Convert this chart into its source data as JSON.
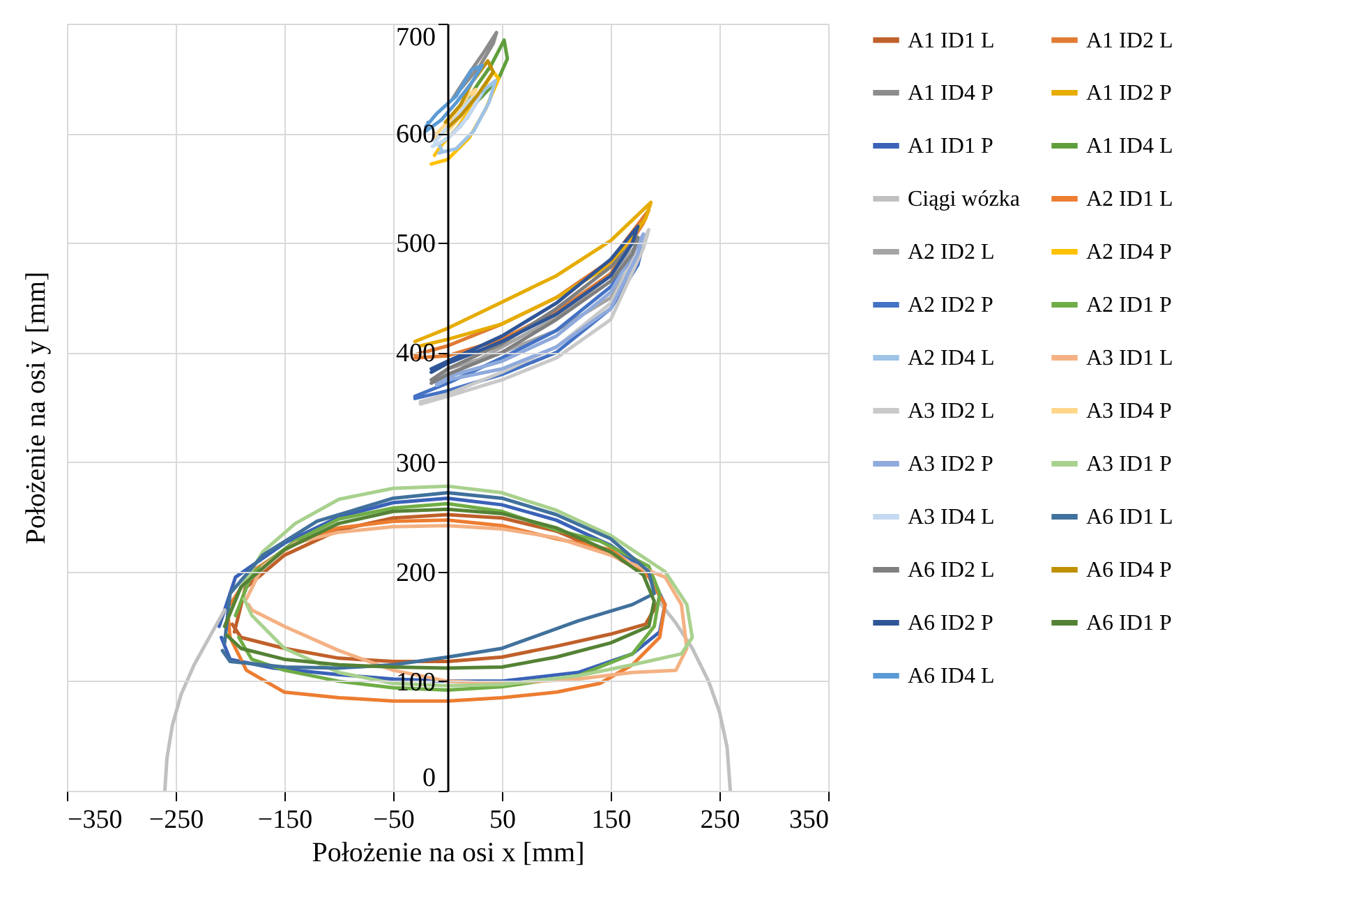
{
  "chart_data": {
    "type": "line",
    "xlabel": "Położenie na osi x [mm]",
    "ylabel": "Położenie na osi y [mm]",
    "xlim": [
      -350,
      350
    ],
    "xticks": [
      -350,
      -250,
      -150,
      -50,
      50,
      150,
      250,
      350
    ],
    "ylim": [
      0,
      700
    ],
    "yticks": [
      0,
      100,
      200,
      300,
      400,
      500,
      600,
      700
    ],
    "grid": true,
    "legend": "right",
    "marker": "none",
    "line_style": "solid",
    "series": [
      {
        "name": "A1 ID1 L",
        "color": "#c0602a",
        "x": [
          -196,
          -186,
          -150,
          -100,
          -50,
          0,
          50,
          100,
          150,
          185,
          196,
          182,
          150,
          100,
          50,
          0,
          -50,
          -100,
          -150,
          -190,
          -198
        ],
        "values": [
          145,
          185,
          215,
          238,
          249,
          252,
          249,
          237,
          216,
          196,
          176,
          152,
          143,
          132,
          122,
          118,
          118,
          121,
          130,
          140,
          152
        ]
      },
      {
        "name": "A1 ID2 L",
        "color": "#e07a32",
        "x": [
          -30,
          0,
          50,
          100,
          150,
          185,
          180,
          150,
          100,
          50,
          0,
          -30
        ],
        "values": [
          398,
          406,
          426,
          450,
          484,
          530,
          518,
          472,
          437,
          412,
          397,
          395
        ]
      },
      {
        "name": "A1 ID4 P",
        "color": "#8c8c8c",
        "x": [
          5,
          18,
          32,
          45,
          42,
          30,
          15,
          8
        ],
        "values": [
          632,
          652,
          672,
          692,
          682,
          662,
          644,
          636
        ]
      },
      {
        "name": "A1 ID2 P",
        "color": "#e6ac00",
        "x": [
          -30,
          0,
          50,
          100,
          150,
          187,
          182,
          150,
          100,
          50,
          0,
          -25
        ],
        "values": [
          410,
          422,
          446,
          470,
          502,
          537,
          522,
          480,
          450,
          426,
          412,
          406
        ]
      },
      {
        "name": "A1 ID1 P",
        "color": "#3a62b8",
        "x": [
          -210,
          -195,
          -150,
          -100,
          -50,
          0,
          50,
          100,
          150,
          185,
          200,
          195,
          170,
          120,
          50,
          0,
          -50,
          -100,
          -160,
          -200,
          -208
        ],
        "values": [
          150,
          195,
          226,
          250,
          263,
          267,
          261,
          247,
          224,
          200,
          170,
          145,
          125,
          108,
          100,
          100,
          102,
          106,
          112,
          120,
          140
        ]
      },
      {
        "name": "A1 ID4 L",
        "color": "#5f9e3c",
        "x": [
          15,
          28,
          40,
          52,
          55,
          47,
          33,
          20,
          12
        ],
        "values": [
          625,
          645,
          662,
          685,
          668,
          650,
          635,
          622,
          620
        ]
      },
      {
        "name": "Ciągi wózka",
        "color": "#c0c0c0",
        "x": [
          -260,
          -258,
          -253,
          -245,
          -233,
          -218,
          -205,
          null,
          195,
          210,
          225,
          240,
          250,
          257,
          260
        ],
        "values": [
          0,
          30,
          60,
          88,
          115,
          142,
          165,
          null,
          172,
          153,
          130,
          100,
          72,
          40,
          0
        ]
      },
      {
        "name": "A2 ID1 L",
        "color": "#ed7d31",
        "x": [
          -200,
          -180,
          -140,
          -100,
          -50,
          0,
          50,
          100,
          150,
          185,
          200,
          195,
          170,
          140,
          100,
          50,
          0,
          -50,
          -100,
          -150,
          -185,
          -200,
          -202
        ],
        "values": [
          170,
          200,
          226,
          240,
          246,
          247,
          242,
          230,
          220,
          195,
          170,
          140,
          115,
          98,
          90,
          85,
          82,
          82,
          85,
          90,
          110,
          140,
          162
        ]
      },
      {
        "name": "A2 ID2 L",
        "color": "#a5a5a5",
        "x": [
          -10,
          0,
          50,
          100,
          150,
          180,
          175,
          150,
          100,
          50,
          0,
          -10
        ],
        "values": [
          372,
          378,
          405,
          432,
          470,
          505,
          490,
          450,
          420,
          400,
          385,
          375
        ]
      },
      {
        "name": "A2 ID4 P",
        "color": "#ffc000",
        "x": [
          -15,
          0,
          20,
          35,
          47,
          42,
          27,
          10,
          -5,
          -12
        ],
        "values": [
          572,
          576,
          596,
          622,
          650,
          656,
          632,
          606,
          590,
          580
        ]
      },
      {
        "name": "A2 ID2 P",
        "color": "#4472c4",
        "x": [
          -30,
          0,
          50,
          100,
          150,
          180,
          175,
          150,
          100,
          50,
          0,
          -30
        ],
        "values": [
          360,
          372,
          395,
          420,
          460,
          500,
          480,
          440,
          400,
          380,
          365,
          358
        ]
      },
      {
        "name": "A2 ID1 P",
        "color": "#70ad47",
        "x": [
          -195,
          -180,
          -140,
          -100,
          -50,
          0,
          50,
          100,
          140,
          185,
          195,
          190,
          170,
          120,
          50,
          0,
          -50,
          -100,
          -150,
          -180,
          -192
        ],
        "values": [
          160,
          198,
          228,
          248,
          258,
          262,
          255,
          238,
          228,
          205,
          180,
          150,
          125,
          105,
          95,
          92,
          94,
          100,
          110,
          120,
          140
        ]
      },
      {
        "name": "A2 ID4 L",
        "color": "#9dc3e6",
        "x": [
          -8,
          8,
          24,
          38,
          44,
          34,
          18,
          3,
          -8,
          -5
        ],
        "values": [
          582,
          586,
          602,
          628,
          648,
          640,
          614,
          598,
          590,
          584
        ]
      },
      {
        "name": "A3 ID1 L",
        "color": "#f4b183",
        "x": [
          -185,
          -170,
          -140,
          -100,
          -50,
          0,
          50,
          100,
          150,
          200,
          215,
          220,
          210,
          170,
          120,
          50,
          0,
          -50,
          -100,
          -150,
          -180,
          -183
        ],
        "values": [
          175,
          205,
          226,
          236,
          241,
          242,
          239,
          231,
          215,
          195,
          170,
          130,
          110,
          108,
          102,
          98,
          100,
          110,
          128,
          150,
          165,
          170
        ]
      },
      {
        "name": "A3 ID2 L",
        "color": "#c9c9c9",
        "x": [
          -25,
          0,
          50,
          100,
          150,
          185,
          180,
          150,
          100,
          50,
          0,
          -25
        ],
        "values": [
          355,
          362,
          382,
          405,
          445,
          512,
          495,
          430,
          395,
          375,
          360,
          353
        ]
      },
      {
        "name": "A3 ID4 P",
        "color": "#ffd68a",
        "x": [
          -12,
          2,
          16,
          26,
          20,
          6,
          -10
        ],
        "values": [
          596,
          604,
          620,
          640,
          636,
          616,
          600
        ]
      },
      {
        "name": "A3 ID2 P",
        "color": "#8faadc",
        "x": [
          -10,
          0,
          50,
          100,
          150,
          180,
          175,
          150,
          100,
          50,
          0,
          -10
        ],
        "values": [
          372,
          378,
          392,
          415,
          455,
          508,
          490,
          440,
          405,
          385,
          375,
          370
        ]
      },
      {
        "name": "A3 ID1 P",
        "color": "#a9d18e",
        "x": [
          -190,
          -170,
          -140,
          -100,
          -50,
          0,
          50,
          100,
          150,
          200,
          220,
          225,
          215,
          170,
          120,
          50,
          0,
          -50,
          -100,
          -150,
          -180,
          -187
        ],
        "values": [
          185,
          218,
          244,
          266,
          276,
          278,
          272,
          256,
          233,
          200,
          170,
          140,
          125,
          115,
          105,
          97,
          96,
          98,
          108,
          130,
          160,
          175
        ]
      },
      {
        "name": "A3 ID4 L",
        "color": "#c5d9f1",
        "x": [
          -14,
          -2,
          12,
          24,
          30,
          20,
          6,
          -12
        ],
        "values": [
          588,
          594,
          606,
          624,
          636,
          630,
          612,
          592
        ]
      },
      {
        "name": "A6 ID1 L",
        "color": "#41719c",
        "x": [
          -205,
          -200,
          -170,
          -120,
          -50,
          0,
          50,
          100,
          150,
          185,
          190,
          170,
          120,
          50,
          0,
          -50,
          -100,
          -150,
          -200,
          -207
        ],
        "values": [
          135,
          180,
          215,
          246,
          267,
          272,
          267,
          252,
          230,
          200,
          180,
          170,
          155,
          130,
          122,
          115,
          112,
          113,
          118,
          128
        ]
      },
      {
        "name": "A6 ID2 L",
        "color": "#7f7f7f",
        "x": [
          -15,
          0,
          50,
          100,
          150,
          175,
          170,
          150,
          100,
          50,
          0,
          -15
        ],
        "values": [
          375,
          385,
          408,
          440,
          478,
          505,
          490,
          465,
          430,
          400,
          380,
          372
        ]
      },
      {
        "name": "A6 ID4 P",
        "color": "#bf9000",
        "x": [
          -2,
          12,
          22,
          37,
          42,
          27,
          12,
          1
        ],
        "values": [
          610,
          626,
          646,
          666,
          656,
          634,
          616,
          606
        ]
      },
      {
        "name": "A6 ID2 P",
        "color": "#2f5597",
        "x": [
          -15,
          0,
          50,
          100,
          150,
          175,
          170,
          150,
          100,
          50,
          0,
          -15
        ],
        "values": [
          385,
          392,
          415,
          445,
          485,
          515,
          500,
          470,
          435,
          410,
          390,
          382
        ]
      },
      {
        "name": "A6 ID1 P",
        "color": "#548235",
        "x": [
          -205,
          -190,
          -150,
          -100,
          -50,
          0,
          50,
          100,
          150,
          180,
          190,
          185,
          150,
          100,
          50,
          0,
          -50,
          -100,
          -150,
          -190,
          -203
        ],
        "values": [
          150,
          186,
          220,
          244,
          255,
          257,
          253,
          240,
          218,
          197,
          173,
          150,
          135,
          122,
          113,
          112,
          113,
          115,
          120,
          130,
          142
        ]
      },
      {
        "name": "A6 ID4 L",
        "color": "#5b9bd5",
        "x": [
          -20,
          -10,
          8,
          22,
          32,
          22,
          8,
          -6,
          -20,
          -18
        ],
        "values": [
          606,
          618,
          634,
          658,
          662,
          646,
          628,
          612,
          602,
          610
        ]
      }
    ]
  }
}
